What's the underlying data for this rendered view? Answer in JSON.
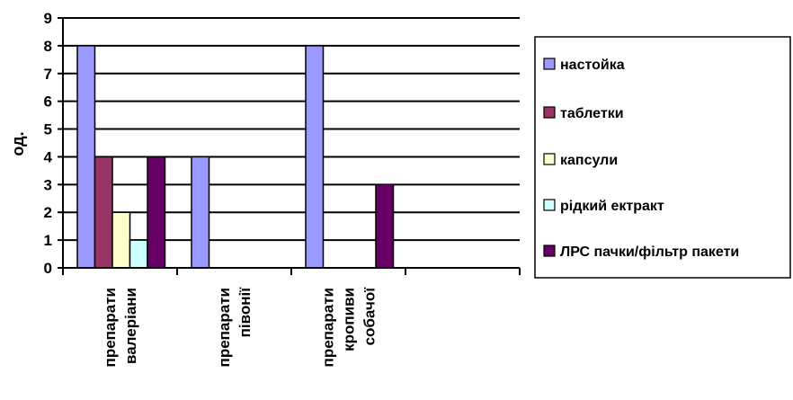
{
  "chart_data": {
    "type": "bar",
    "title": "",
    "xlabel": "",
    "ylabel": "од.",
    "ylim": [
      0,
      9
    ],
    "yticks": [
      0,
      1,
      2,
      3,
      4,
      5,
      6,
      7,
      8,
      9
    ],
    "grid": "horizontal",
    "legend_position": "right",
    "categories": [
      [
        "препарати",
        "валеріани"
      ],
      [
        "препарати",
        "півонії"
      ],
      [
        "препарати",
        "кропиви",
        "собачої"
      ]
    ],
    "series": [
      {
        "name": "настойка",
        "color": "#9999ff",
        "values": [
          8,
          4,
          8
        ]
      },
      {
        "name": "таблетки",
        "color": "#993366",
        "values": [
          4,
          0,
          0
        ]
      },
      {
        "name": "капсули",
        "color": "#ffffcc",
        "values": [
          2,
          0,
          0
        ]
      },
      {
        "name": "рідкий ектракт",
        "color": "#ccffff",
        "values": [
          1,
          0,
          0
        ]
      },
      {
        "name": "ЛРС пачки/фільтр пакети",
        "color": "#660066",
        "values": [
          4,
          0,
          3
        ]
      }
    ]
  }
}
